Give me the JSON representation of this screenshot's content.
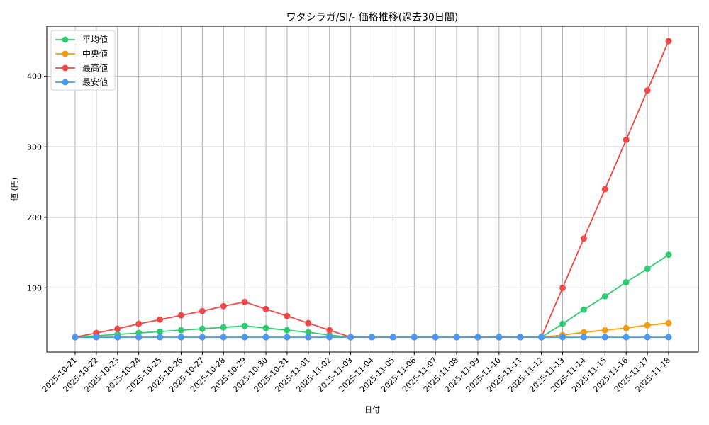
{
  "chart_data": {
    "type": "line",
    "title": "ワタシラガ/SI/- 価格推移(過去30日間)",
    "xlabel": "日付",
    "ylabel": "値 (円)",
    "ylim": [
      9,
      471
    ],
    "yticks": [
      100,
      200,
      300,
      400
    ],
    "grid": true,
    "legend_position": "upper left",
    "x": [
      "2025-10-21",
      "2025-10-22",
      "2025-10-23",
      "2025-10-24",
      "2025-10-25",
      "2025-10-26",
      "2025-10-27",
      "2025-10-28",
      "2025-10-29",
      "2025-10-30",
      "2025-10-31",
      "2025-11-01",
      "2025-11-02",
      "2025-11-03",
      "2025-11-04",
      "2025-11-05",
      "2025-11-06",
      "2025-11-07",
      "2025-11-08",
      "2025-11-09",
      "2025-11-10",
      "2025-11-11",
      "2025-11-12",
      "2025-11-13",
      "2025-11-14",
      "2025-11-15",
      "2025-11-16",
      "2025-11-17",
      "2025-11-18"
    ],
    "series": [
      {
        "name": "平均値",
        "color": "#2ecc71",
        "values": [
          30,
          32,
          34,
          36,
          38,
          40,
          42,
          44,
          46,
          43,
          40,
          37,
          33,
          30,
          30,
          30,
          30,
          30,
          30,
          30,
          30,
          30,
          30,
          49,
          69,
          88,
          108,
          127,
          147
        ]
      },
      {
        "name": "中央値",
        "color": "#f39c12",
        "values": [
          30,
          30,
          30,
          30,
          30,
          30,
          30,
          30,
          30,
          30,
          30,
          30,
          30,
          30,
          30,
          30,
          30,
          30,
          30,
          30,
          30,
          30,
          30,
          33,
          37,
          40,
          43,
          47,
          50
        ]
      },
      {
        "name": "最高値",
        "color": "#f04848",
        "values": [
          30,
          36,
          42,
          49,
          55,
          61,
          67,
          74,
          80,
          70,
          60,
          50,
          40,
          30,
          30,
          30,
          30,
          30,
          30,
          30,
          30,
          30,
          30,
          100,
          170,
          240,
          310,
          380,
          450
        ]
      },
      {
        "name": "最安値",
        "color": "#4a9af5",
        "values": [
          30,
          30,
          30,
          30,
          30,
          30,
          30,
          30,
          30,
          30,
          30,
          30,
          30,
          30,
          30,
          30,
          30,
          30,
          30,
          30,
          30,
          30,
          30,
          30,
          30,
          30,
          30,
          30,
          30
        ]
      }
    ]
  }
}
